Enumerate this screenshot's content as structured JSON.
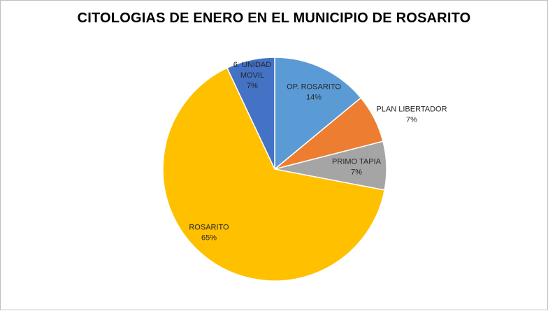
{
  "chart_data": {
    "type": "pie",
    "title": "CITOLOGIAS DE ENERO EN EL MUNICIPIO DE ROSARITO",
    "series": [
      {
        "labels": [
          "OP. ROSARITO",
          "PLAN LIBERTADOR",
          "PRIMO TAPIA",
          "ROSARITO",
          "6. UNIDAD MOVIL"
        ],
        "values": [
          14,
          7,
          7,
          65,
          7
        ],
        "percent_labels": [
          "14%",
          "7%",
          "7%",
          "65%",
          "7%"
        ],
        "colors": [
          "#5B9BD5",
          "#ED7D31",
          "#A5A5A5",
          "#FFC000",
          "#4472C4"
        ]
      }
    ],
    "legend": "none",
    "data_labels": "category name and percentage"
  }
}
